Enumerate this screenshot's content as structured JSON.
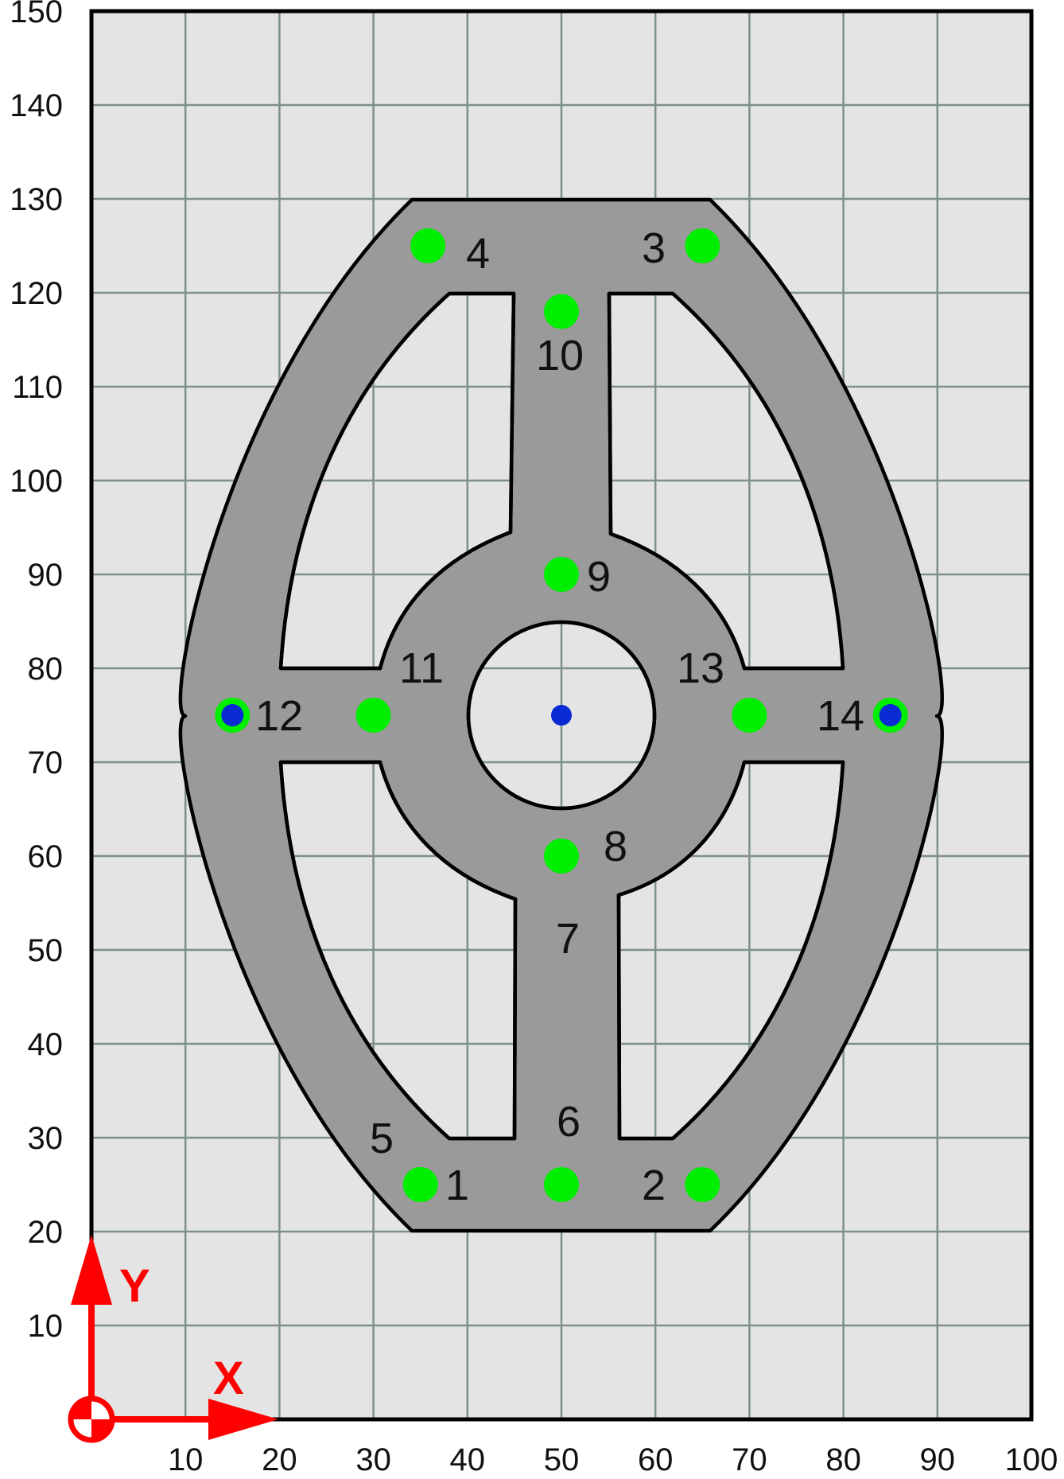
{
  "chart_data": {
    "type": "scatter",
    "title": "",
    "xlabel": "X",
    "ylabel": "Y",
    "xlim": [
      0,
      100
    ],
    "ylim": [
      0,
      150
    ],
    "grid": true,
    "x_ticks": [
      10,
      20,
      30,
      40,
      50,
      60,
      70,
      80,
      90,
      100
    ],
    "y_ticks": [
      10,
      20,
      30,
      40,
      50,
      60,
      70,
      80,
      90,
      100,
      110,
      120,
      130,
      140,
      150
    ],
    "colors": {
      "background": "#e4e4e4",
      "grid": "#7e908a",
      "part": "#9a9a9a",
      "outline": "#000000",
      "green_point": "#00ee00",
      "blue_point": "#0a2ad4",
      "axis_arrow": "#ff0000"
    },
    "points": [
      {
        "label": "1",
        "x": 35,
        "y": 25,
        "color": "green"
      },
      {
        "label": "2",
        "x": 65,
        "y": 25,
        "color": "green"
      },
      {
        "label": "3",
        "x": 65,
        "y": 125,
        "color": "green"
      },
      {
        "label": "4",
        "x": 35.8,
        "y": 125,
        "color": "green"
      },
      {
        "label": "5",
        "x": 35,
        "y": 25,
        "color": "green"
      },
      {
        "label": "6",
        "x": 50,
        "y": 25,
        "color": "green"
      },
      {
        "label": "7",
        "x": 50,
        "y": 50,
        "color": "none"
      },
      {
        "label": "8",
        "x": 50,
        "y": 60,
        "color": "green"
      },
      {
        "label": "9",
        "x": 50,
        "y": 90,
        "color": "green"
      },
      {
        "label": "10",
        "x": 50,
        "y": 118,
        "color": "green"
      },
      {
        "label": "11",
        "x": 30,
        "y": 75,
        "color": "green"
      },
      {
        "label": "12",
        "x": 15,
        "y": 75,
        "color": "green+blue"
      },
      {
        "label": "13",
        "x": 70,
        "y": 75,
        "color": "green"
      },
      {
        "label": "14",
        "x": 85,
        "y": 75,
        "color": "green+blue"
      },
      {
        "label": "",
        "x": 50,
        "y": 75,
        "color": "blue"
      }
    ]
  }
}
